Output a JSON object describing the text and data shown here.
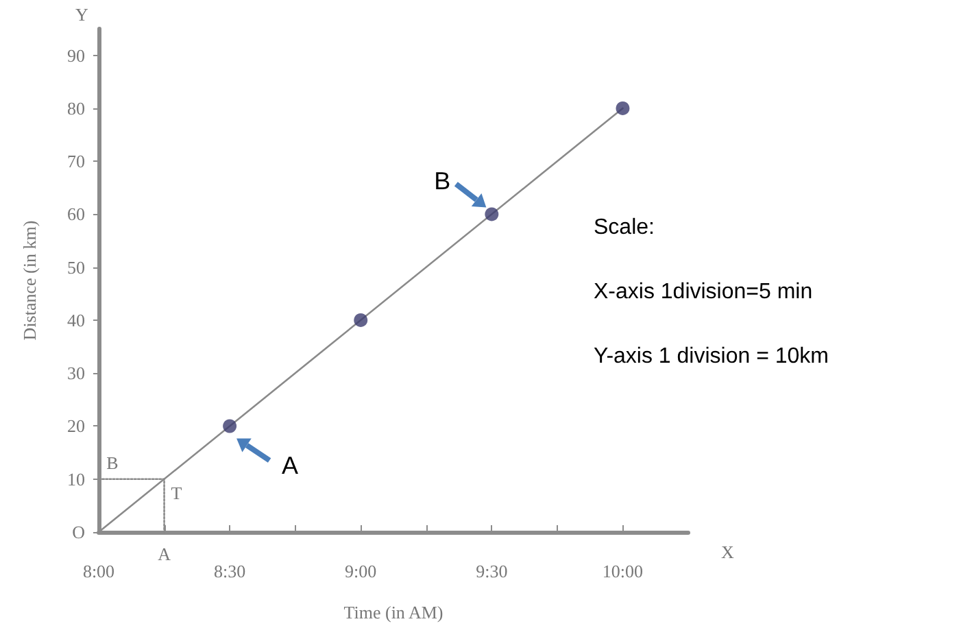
{
  "chart_data": {
    "type": "line",
    "xlabel": "Time (in AM)",
    "ylabel": "Distance (in km)",
    "series": [
      {
        "color": "#8a8a8a",
        "x": [
          8,
          10
        ],
        "values": [
          0,
          80
        ],
        "marker": "none",
        "line_style": "solid"
      },
      {
        "type": "scatter",
        "color": "#3b3b6e",
        "x": [
          8.5,
          9,
          9.5,
          10
        ],
        "values": [
          20,
          40,
          60,
          80
        ],
        "marker": "circle"
      },
      {
        "type": "line",
        "color": "#8a8a8a",
        "x": [
          8,
          8.25,
          8.25
        ],
        "values": [
          10,
          10,
          0
        ],
        "marker": "none",
        "line_style": "dotted"
      }
    ],
    "xlim": [
      8,
      10.25
    ],
    "xticks": [
      {
        "value": 8,
        "label": "8:00"
      },
      {
        "value": 8.25,
        "label": null
      },
      {
        "value": 8.5,
        "label": "8:30"
      },
      {
        "value": 8.75,
        "label": null
      },
      {
        "value": 9,
        "label": "9:00"
      },
      {
        "value": 9.25,
        "label": null
      },
      {
        "value": 9.5,
        "label": "9:30"
      },
      {
        "value": 9.75,
        "label": null
      },
      {
        "value": 10,
        "label": "10:00"
      }
    ],
    "ylim": [
      0,
      95
    ],
    "yticks": [
      {
        "value": 0,
        "label": "O"
      },
      10,
      20,
      30,
      40,
      50,
      60,
      70,
      80,
      90
    ],
    "grid": false,
    "annotations": [
      {
        "text": "A",
        "x": 8.5,
        "y": 20
      },
      {
        "text": "B",
        "x": 9.5,
        "y": 60
      },
      {
        "text": "B",
        "x": 8,
        "y": 10
      },
      {
        "text": "T",
        "x": 8.25,
        "y": 10
      },
      {
        "text": "A",
        "x": 8.25,
        "y": 0
      },
      "X",
      "Y",
      "Scale:",
      "X-axis 1division=5 min",
      "Y-axis 1 division = 10km"
    ]
  }
}
